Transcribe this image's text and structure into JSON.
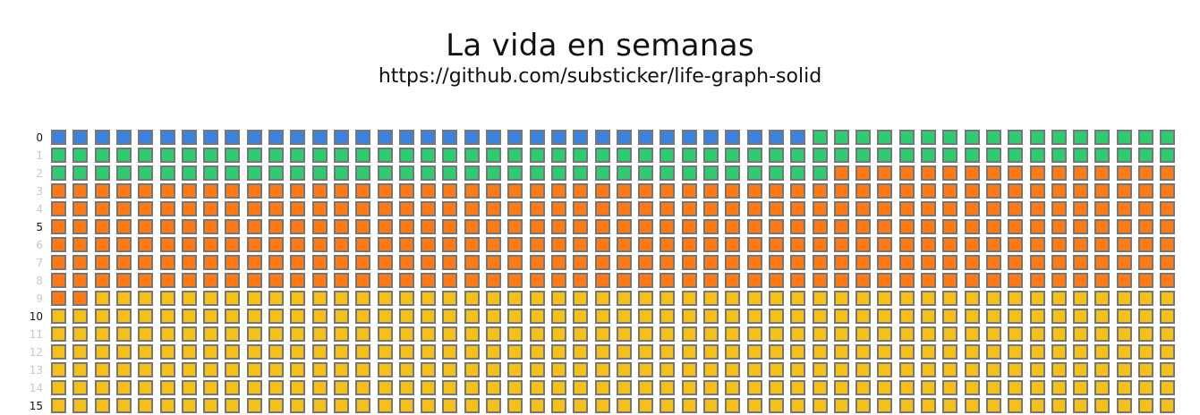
{
  "header": {
    "title": "La vida en semanas",
    "subtitle": "https://github.com/substicker/life-graph-solid"
  },
  "grid": {
    "weeks_per_row": 52,
    "row_labels": [
      "0",
      "1",
      "2",
      "3",
      "4",
      "5",
      "6",
      "7",
      "8",
      "9",
      "10",
      "11",
      "12",
      "13",
      "14",
      "15"
    ],
    "major_label_every": 5,
    "colors": {
      "border": "#777777",
      "major_label": "#111111",
      "minor_label": "#c8c8c8"
    },
    "phases": [
      {
        "color": "#3b82e0",
        "weeks": 35
      },
      {
        "color": "#2ecc71",
        "weeks": 105
      },
      {
        "color": "#ff7a14",
        "weeks": 330
      },
      {
        "color": "#f5c118",
        "weeks": 362
      }
    ]
  }
}
